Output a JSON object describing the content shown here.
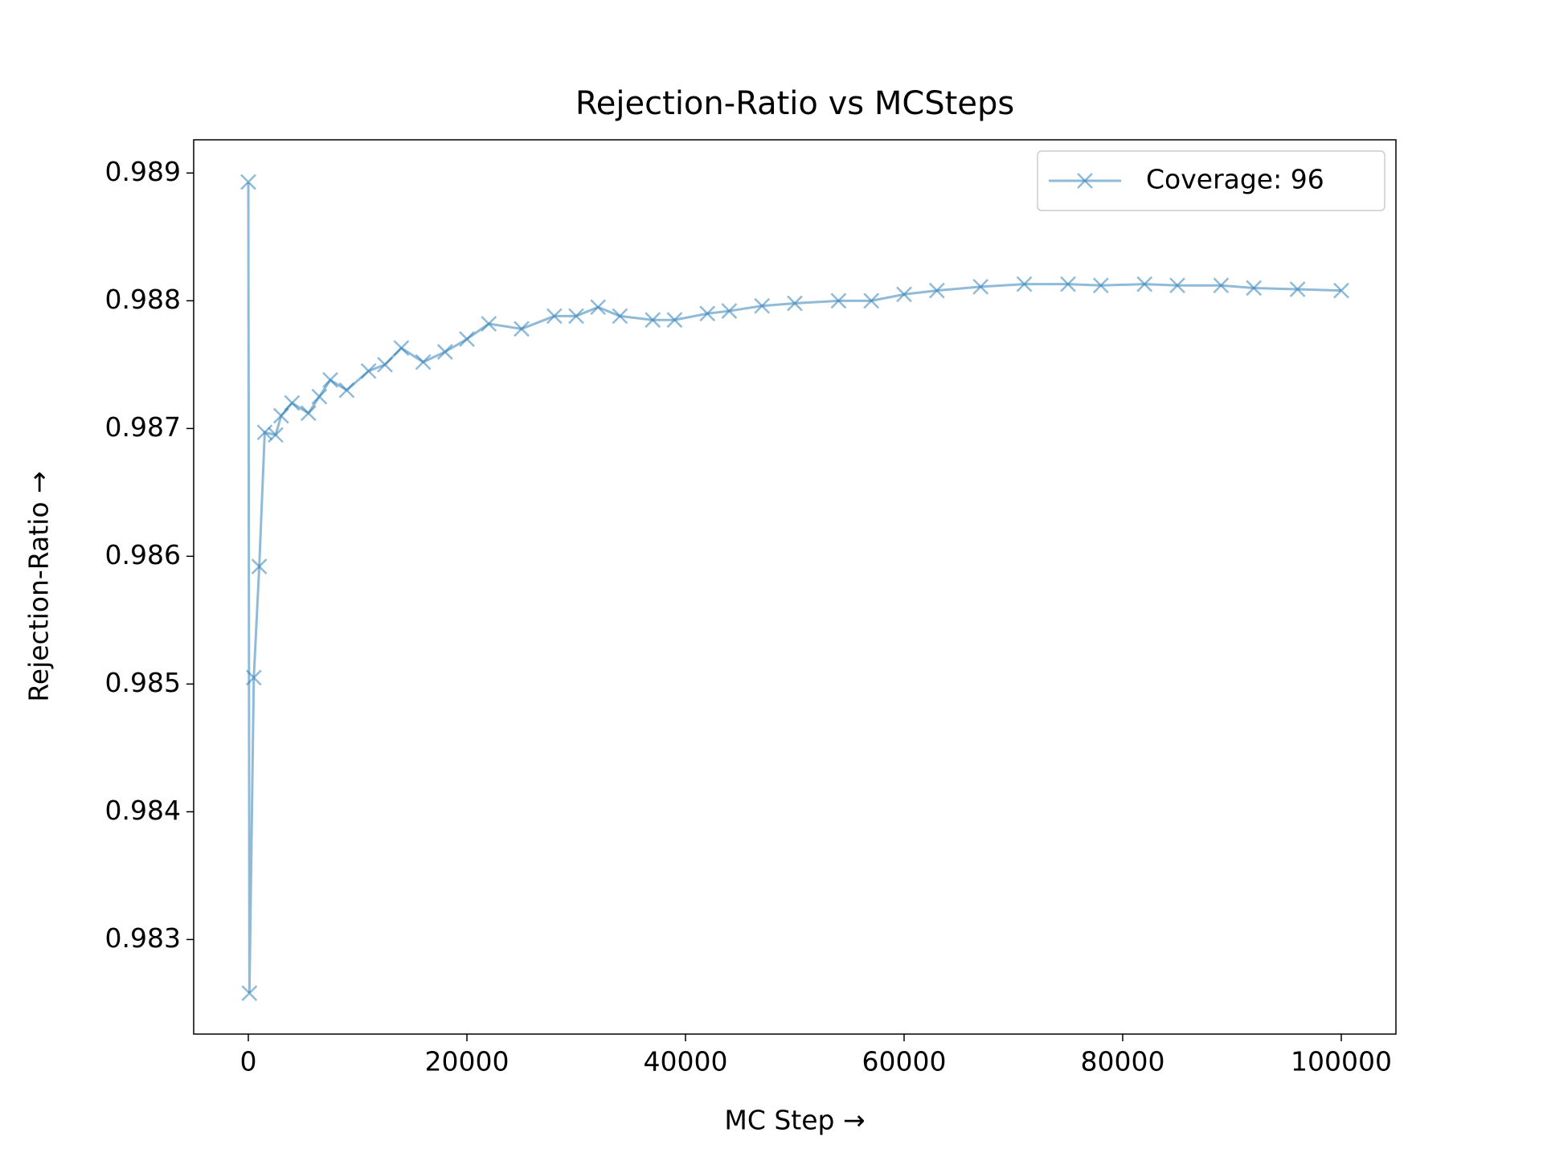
{
  "chart_data": {
    "type": "line",
    "title": "Rejection-Ratio vs MCSteps",
    "xlabel": "MC Step →",
    "ylabel": "Rejection-Ratio →",
    "x": [
      0,
      100,
      500,
      1000,
      1500,
      2500,
      3000,
      4000,
      5500,
      6500,
      7500,
      9000,
      11000,
      12500,
      14000,
      16000,
      18000,
      20000,
      22000,
      25000,
      28000,
      30000,
      32000,
      34000,
      37000,
      39000,
      42000,
      44000,
      47000,
      50000,
      54000,
      57000,
      60000,
      63000,
      67000,
      71000,
      75000,
      78000,
      82000,
      85000,
      89000,
      92000,
      96000,
      100000
    ],
    "series": [
      {
        "name": "Coverage: 96",
        "color": "#1f77b4",
        "values": [
          0.98893,
          0.98258,
          0.98505,
          0.98592,
          0.98697,
          0.98695,
          0.9871,
          0.9872,
          0.98712,
          0.98725,
          0.98738,
          0.9873,
          0.98745,
          0.9875,
          0.98763,
          0.98752,
          0.9876,
          0.9877,
          0.98782,
          0.98778,
          0.98788,
          0.98788,
          0.98795,
          0.98788,
          0.98785,
          0.98785,
          0.9879,
          0.98792,
          0.98796,
          0.98798,
          0.988,
          0.988,
          0.98805,
          0.98808,
          0.98811,
          0.98813,
          0.98813,
          0.98812,
          0.98813,
          0.98812,
          0.98812,
          0.9881,
          0.98809,
          0.98808
        ]
      }
    ],
    "xlim": [
      -5000,
      105000
    ],
    "ylim": [
      0.98226,
      0.98926
    ],
    "xticks": [
      0,
      20000,
      40000,
      60000,
      80000,
      100000
    ],
    "yticks": [
      0.983,
      0.984,
      0.985,
      0.986,
      0.987,
      0.988,
      0.989
    ],
    "legend": "upper right",
    "marker": "x",
    "alpha": 0.5,
    "grid": false
  }
}
